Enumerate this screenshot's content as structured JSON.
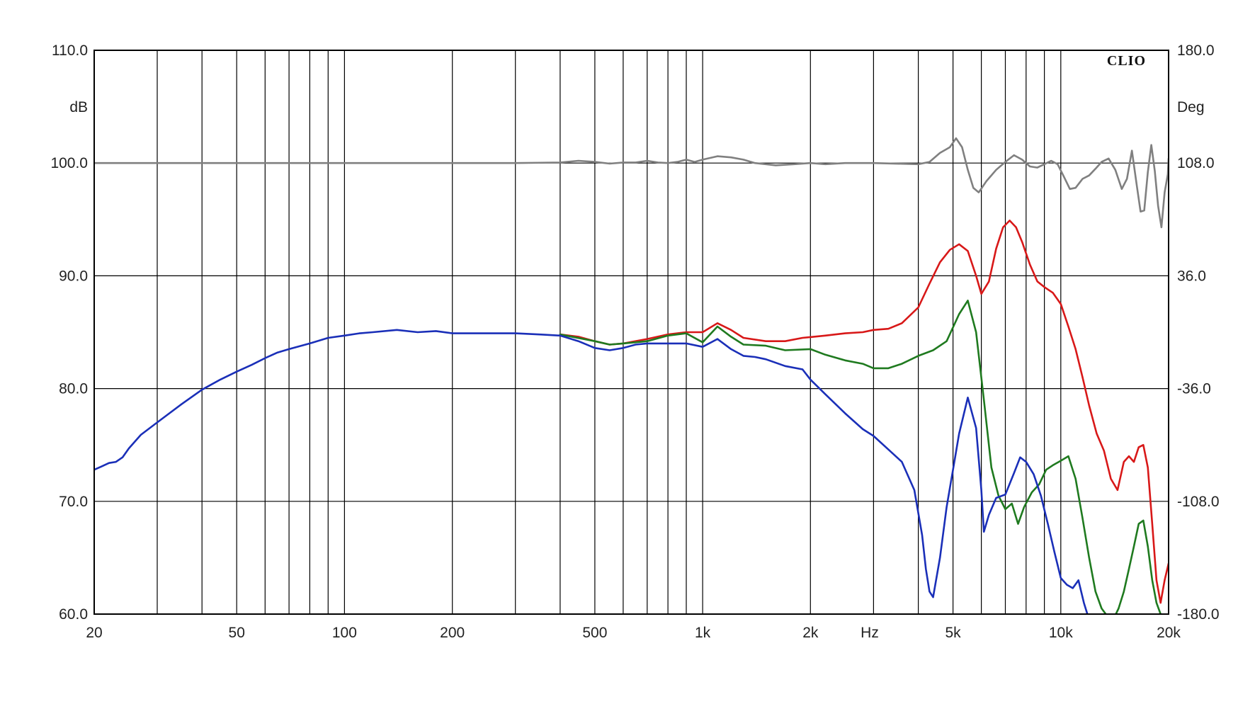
{
  "chart_data": {
    "type": "line",
    "brand": "CLIO",
    "xscale": "log",
    "xlim": [
      20,
      20000
    ],
    "ylim_left": [
      60,
      110
    ],
    "ylim_right": [
      -180,
      180
    ],
    "left_unit": "dB",
    "right_unit": "Deg",
    "x_unit": "Hz",
    "grid": true,
    "x_ticks": [
      {
        "value": 20,
        "label": "20"
      },
      {
        "value": 50,
        "label": "50"
      },
      {
        "value": 100,
        "label": "100"
      },
      {
        "value": 200,
        "label": "200"
      },
      {
        "value": 500,
        "label": "500"
      },
      {
        "value": 1000,
        "label": "1k"
      },
      {
        "value": 2000,
        "label": "2k"
      },
      {
        "value": 5000,
        "label": "5k"
      },
      {
        "value": 10000,
        "label": "10k"
      },
      {
        "value": 20000,
        "label": "20k"
      }
    ],
    "y_ticks_left": [
      {
        "value": 110,
        "label": "110.0"
      },
      {
        "value": 100,
        "label": "100.0"
      },
      {
        "value": 90,
        "label": "90.0"
      },
      {
        "value": 80,
        "label": "80.0"
      },
      {
        "value": 70,
        "label": "70.0"
      },
      {
        "value": 60,
        "label": "60.0"
      }
    ],
    "y_ticks_right": [
      {
        "value": 180,
        "label": "180.0"
      },
      {
        "value": 108,
        "label": "108.0"
      },
      {
        "value": 36,
        "label": "36.0"
      },
      {
        "value": -36,
        "label": "-36.0"
      },
      {
        "value": -108,
        "label": "-108.0"
      },
      {
        "value": -180,
        "label": "-180.0"
      }
    ],
    "series": [
      {
        "color": "#808080",
        "points": [
          [
            20,
            100.0
          ],
          [
            300,
            100.0
          ],
          [
            400,
            100.05
          ],
          [
            450,
            100.2
          ],
          [
            500,
            100.1
          ],
          [
            550,
            99.95
          ],
          [
            600,
            100.05
          ],
          [
            650,
            100.05
          ],
          [
            700,
            100.2
          ],
          [
            750,
            100.05
          ],
          [
            800,
            100.0
          ],
          [
            850,
            100.1
          ],
          [
            900,
            100.3
          ],
          [
            950,
            100.1
          ],
          [
            1000,
            100.3
          ],
          [
            1100,
            100.6
          ],
          [
            1200,
            100.5
          ],
          [
            1300,
            100.3
          ],
          [
            1400,
            100.0
          ],
          [
            1500,
            99.9
          ],
          [
            1600,
            99.8
          ],
          [
            1800,
            99.9
          ],
          [
            2000,
            100.0
          ],
          [
            2200,
            99.9
          ],
          [
            2500,
            100.0
          ],
          [
            3000,
            100.0
          ],
          [
            4000,
            99.9
          ],
          [
            4300,
            100.1
          ],
          [
            4600,
            100.9
          ],
          [
            4900,
            101.4
          ],
          [
            5100,
            102.2
          ],
          [
            5300,
            101.4
          ],
          [
            5500,
            99.4
          ],
          [
            5700,
            97.8
          ],
          [
            5900,
            97.4
          ],
          [
            6200,
            98.4
          ],
          [
            6600,
            99.4
          ],
          [
            7000,
            100.1
          ],
          [
            7400,
            100.7
          ],
          [
            7800,
            100.3
          ],
          [
            8200,
            99.7
          ],
          [
            8600,
            99.6
          ],
          [
            9000,
            99.9
          ],
          [
            9400,
            100.2
          ],
          [
            9800,
            99.9
          ],
          [
            10200,
            98.8
          ],
          [
            10600,
            97.7
          ],
          [
            11000,
            97.8
          ],
          [
            11500,
            98.6
          ],
          [
            12000,
            98.9
          ],
          [
            12500,
            99.5
          ],
          [
            13000,
            100.1
          ],
          [
            13600,
            100.4
          ],
          [
            14200,
            99.4
          ],
          [
            14800,
            97.7
          ],
          [
            15300,
            98.6
          ],
          [
            15800,
            101.1
          ],
          [
            16300,
            98.0
          ],
          [
            16700,
            95.7
          ],
          [
            17100,
            95.8
          ],
          [
            17500,
            99.2
          ],
          [
            17900,
            101.6
          ],
          [
            18300,
            99.3
          ],
          [
            18700,
            96.2
          ],
          [
            19100,
            94.3
          ],
          [
            19500,
            97.4
          ],
          [
            19900,
            99.0
          ],
          [
            20000,
            100.4
          ]
        ]
      },
      {
        "color": "#d81818",
        "points": [
          [
            400,
            84.8
          ],
          [
            450,
            84.6
          ],
          [
            500,
            84.2
          ],
          [
            550,
            83.9
          ],
          [
            600,
            84.0
          ],
          [
            700,
            84.4
          ],
          [
            800,
            84.8
          ],
          [
            900,
            85.0
          ],
          [
            1000,
            85.0
          ],
          [
            1100,
            85.8
          ],
          [
            1200,
            85.2
          ],
          [
            1300,
            84.5
          ],
          [
            1500,
            84.2
          ],
          [
            1700,
            84.2
          ],
          [
            1900,
            84.5
          ],
          [
            2200,
            84.7
          ],
          [
            2500,
            84.9
          ],
          [
            2800,
            85.0
          ],
          [
            3000,
            85.2
          ],
          [
            3300,
            85.3
          ],
          [
            3600,
            85.8
          ],
          [
            4000,
            87.2
          ],
          [
            4300,
            89.3
          ],
          [
            4600,
            91.2
          ],
          [
            4900,
            92.3
          ],
          [
            5200,
            92.8
          ],
          [
            5500,
            92.2
          ],
          [
            5800,
            90.0
          ],
          [
            6000,
            88.4
          ],
          [
            6300,
            89.5
          ],
          [
            6600,
            92.4
          ],
          [
            6900,
            94.3
          ],
          [
            7200,
            94.9
          ],
          [
            7500,
            94.3
          ],
          [
            7800,
            93.0
          ],
          [
            8200,
            91.0
          ],
          [
            8600,
            89.5
          ],
          [
            9000,
            89.0
          ],
          [
            9500,
            88.5
          ],
          [
            10000,
            87.5
          ],
          [
            10500,
            85.5
          ],
          [
            11000,
            83.5
          ],
          [
            11500,
            81.0
          ],
          [
            12000,
            78.5
          ],
          [
            12600,
            76.0
          ],
          [
            13200,
            74.5
          ],
          [
            13800,
            72.0
          ],
          [
            14400,
            71.0
          ],
          [
            15000,
            73.5
          ],
          [
            15500,
            74.0
          ],
          [
            16000,
            73.5
          ],
          [
            16500,
            74.8
          ],
          [
            17000,
            75.0
          ],
          [
            17500,
            73.0
          ],
          [
            18000,
            68.0
          ],
          [
            18500,
            63.0
          ],
          [
            19000,
            61.0
          ],
          [
            19500,
            63.0
          ],
          [
            20000,
            64.5
          ]
        ]
      },
      {
        "color": "#1f7a1f",
        "points": [
          [
            400,
            84.8
          ],
          [
            500,
            84.2
          ],
          [
            550,
            83.9
          ],
          [
            600,
            84.0
          ],
          [
            700,
            84.2
          ],
          [
            800,
            84.7
          ],
          [
            900,
            84.9
          ],
          [
            1000,
            84.1
          ],
          [
            1100,
            85.5
          ],
          [
            1200,
            84.6
          ],
          [
            1300,
            83.9
          ],
          [
            1500,
            83.8
          ],
          [
            1700,
            83.4
          ],
          [
            2000,
            83.5
          ],
          [
            2200,
            83.0
          ],
          [
            2500,
            82.5
          ],
          [
            2800,
            82.2
          ],
          [
            3000,
            81.8
          ],
          [
            3300,
            81.8
          ],
          [
            3600,
            82.2
          ],
          [
            4000,
            82.9
          ],
          [
            4400,
            83.4
          ],
          [
            4800,
            84.2
          ],
          [
            5200,
            86.6
          ],
          [
            5500,
            87.8
          ],
          [
            5800,
            85.0
          ],
          [
            6100,
            79.0
          ],
          [
            6400,
            73.0
          ],
          [
            6700,
            70.5
          ],
          [
            7000,
            69.3
          ],
          [
            7300,
            69.8
          ],
          [
            7600,
            68.0
          ],
          [
            7900,
            69.5
          ],
          [
            8300,
            70.8
          ],
          [
            8700,
            71.5
          ],
          [
            9100,
            72.8
          ],
          [
            9500,
            73.2
          ],
          [
            10000,
            73.6
          ],
          [
            10500,
            74.0
          ],
          [
            11000,
            72.0
          ],
          [
            11500,
            68.5
          ],
          [
            12000,
            65.0
          ],
          [
            12500,
            62.0
          ],
          [
            13000,
            60.5
          ],
          [
            13500,
            59.8
          ],
          [
            14000,
            59.5
          ],
          [
            14500,
            60.5
          ],
          [
            15000,
            62.0
          ],
          [
            15500,
            64.0
          ],
          [
            16000,
            66.0
          ],
          [
            16500,
            68.0
          ],
          [
            17000,
            68.3
          ],
          [
            17500,
            66.0
          ],
          [
            18000,
            63.0
          ],
          [
            18500,
            61.0
          ],
          [
            19000,
            60.0
          ]
        ]
      },
      {
        "color": "#1a2fb8",
        "points": [
          [
            20,
            72.8
          ],
          [
            21,
            73.1
          ],
          [
            22,
            73.4
          ],
          [
            23,
            73.5
          ],
          [
            24,
            73.9
          ],
          [
            25,
            74.7
          ],
          [
            27,
            75.9
          ],
          [
            30,
            77.0
          ],
          [
            35,
            78.6
          ],
          [
            40,
            79.9
          ],
          [
            45,
            80.8
          ],
          [
            50,
            81.5
          ],
          [
            55,
            82.1
          ],
          [
            60,
            82.7
          ],
          [
            65,
            83.2
          ],
          [
            70,
            83.5
          ],
          [
            80,
            84.0
          ],
          [
            90,
            84.5
          ],
          [
            100,
            84.7
          ],
          [
            110,
            84.9
          ],
          [
            120,
            85.0
          ],
          [
            140,
            85.2
          ],
          [
            160,
            85.0
          ],
          [
            180,
            85.1
          ],
          [
            200,
            84.9
          ],
          [
            250,
            84.9
          ],
          [
            300,
            84.9
          ],
          [
            350,
            84.8
          ],
          [
            400,
            84.7
          ],
          [
            450,
            84.2
          ],
          [
            500,
            83.6
          ],
          [
            550,
            83.4
          ],
          [
            600,
            83.6
          ],
          [
            650,
            83.9
          ],
          [
            700,
            84.0
          ],
          [
            800,
            84.0
          ],
          [
            900,
            84.0
          ],
          [
            1000,
            83.7
          ],
          [
            1100,
            84.4
          ],
          [
            1200,
            83.5
          ],
          [
            1300,
            82.9
          ],
          [
            1400,
            82.8
          ],
          [
            1500,
            82.6
          ],
          [
            1700,
            82.0
          ],
          [
            1900,
            81.7
          ],
          [
            2000,
            80.8
          ],
          [
            2200,
            79.5
          ],
          [
            2500,
            77.8
          ],
          [
            2800,
            76.4
          ],
          [
            3000,
            75.8
          ],
          [
            3300,
            74.6
          ],
          [
            3600,
            73.5
          ],
          [
            3900,
            71.0
          ],
          [
            4100,
            67.0
          ],
          [
            4200,
            64.0
          ],
          [
            4300,
            62.0
          ],
          [
            4400,
            61.5
          ],
          [
            4600,
            65.0
          ],
          [
            4800,
            69.5
          ],
          [
            5000,
            72.8
          ],
          [
            5200,
            76.0
          ],
          [
            5500,
            79.2
          ],
          [
            5800,
            76.5
          ],
          [
            6000,
            71.0
          ],
          [
            6100,
            67.3
          ],
          [
            6300,
            68.8
          ],
          [
            6600,
            70.3
          ],
          [
            7000,
            70.6
          ],
          [
            7400,
            72.5
          ],
          [
            7700,
            73.9
          ],
          [
            8000,
            73.5
          ],
          [
            8400,
            72.4
          ],
          [
            8800,
            70.5
          ],
          [
            9200,
            68.0
          ],
          [
            9600,
            65.5
          ],
          [
            10000,
            63.2
          ],
          [
            10400,
            62.6
          ],
          [
            10800,
            62.3
          ],
          [
            11200,
            63.0
          ],
          [
            11600,
            61.0
          ],
          [
            12000,
            59.5
          ]
        ]
      }
    ]
  }
}
